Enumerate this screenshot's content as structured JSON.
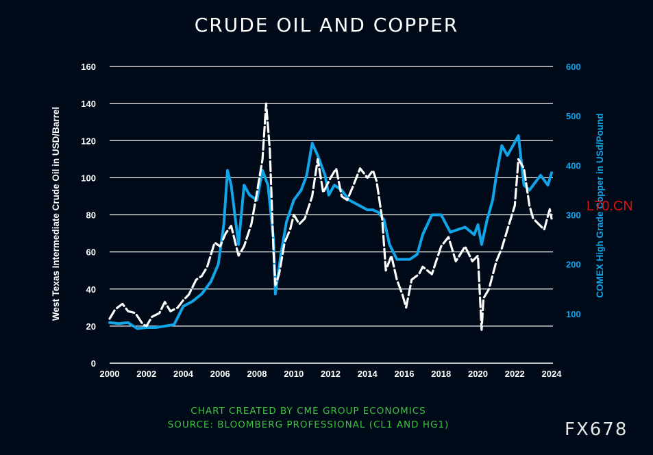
{
  "title": "CRUDE OIL AND COPPER",
  "footer": {
    "line1": "CHART CREATED BY CME GROUP ECONOMICS",
    "line2": "SOURCE: BLOOMBERG PROFESSIONAL (CL1 AND HG1)"
  },
  "watermark": "FX678",
  "stamp": "L70.CN",
  "colors": {
    "background": "#010a18",
    "oil": "#ffffff",
    "copper": "#10a4e8",
    "grid": "#ffffff",
    "footer": "#3fc240",
    "stamp": "#e01010"
  },
  "chart_data": {
    "type": "line",
    "title": "CRUDE OIL AND COPPER",
    "xlabel": "",
    "ylabel": "West Texas Intermediate Crude Oil in USD/Barrel",
    "y2label": "COMEX High Grade Copper in USd/Pound",
    "xlim": [
      2000,
      2024
    ],
    "ylim": [
      0,
      160
    ],
    "y2lim": [
      0,
      600
    ],
    "xticks": [
      "2000",
      "2002",
      "2004",
      "2006",
      "2008",
      "2010",
      "2012",
      "2014",
      "2016",
      "2018",
      "2020",
      "2022",
      "2024"
    ],
    "yticks": [
      "0",
      "20",
      "40",
      "60",
      "80",
      "100",
      "120",
      "140",
      "160"
    ],
    "y2ticks": [
      "100",
      "200",
      "300",
      "400",
      "500",
      "600"
    ],
    "grid": true,
    "series": [
      {
        "name": "",
        "axis": "left",
        "style": "dashed",
        "x": [
          2000.0,
          2000.3,
          2000.7,
          2001.0,
          2001.4,
          2001.8,
          2002.0,
          2002.3,
          2002.7,
          2003.0,
          2003.3,
          2003.7,
          2004.0,
          2004.3,
          2004.7,
          2005.0,
          2005.3,
          2005.7,
          2006.0,
          2006.3,
          2006.6,
          2007.0,
          2007.3,
          2007.7,
          2008.0,
          2008.3,
          2008.5,
          2008.7,
          2008.9,
          2009.0,
          2009.2,
          2009.5,
          2009.8,
          2010.0,
          2010.3,
          2010.6,
          2011.0,
          2011.3,
          2011.6,
          2011.9,
          2012.0,
          2012.3,
          2012.6,
          2012.9,
          2013.2,
          2013.6,
          2014.0,
          2014.3,
          2014.5,
          2014.8,
          2015.0,
          2015.3,
          2015.6,
          2015.9,
          2016.1,
          2016.4,
          2016.8,
          2017.0,
          2017.5,
          2018.0,
          2018.4,
          2018.8,
          2019.0,
          2019.3,
          2019.7,
          2020.0,
          2020.2,
          2020.3,
          2020.6,
          2021.0,
          2021.3,
          2021.6,
          2022.0,
          2022.2,
          2022.5,
          2022.8,
          2023.0,
          2023.3,
          2023.6,
          2023.9,
          2024.0
        ],
        "values": [
          24,
          29,
          32,
          28,
          27,
          21,
          20,
          25,
          27,
          33,
          28,
          30,
          34,
          37,
          45,
          47,
          52,
          65,
          63,
          70,
          74,
          58,
          63,
          75,
          92,
          110,
          140,
          115,
          60,
          42,
          48,
          65,
          72,
          80,
          75,
          78,
          90,
          110,
          92,
          98,
          100,
          105,
          90,
          88,
          95,
          105,
          100,
          104,
          98,
          78,
          50,
          58,
          45,
          37,
          30,
          45,
          48,
          52,
          48,
          63,
          68,
          55,
          58,
          63,
          55,
          58,
          18,
          35,
          40,
          55,
          62,
          72,
          85,
          110,
          105,
          85,
          78,
          75,
          72,
          83,
          78
        ]
      },
      {
        "name": "",
        "axis": "right",
        "style": "solid",
        "x": [
          2000.0,
          2000.5,
          2001.0,
          2001.5,
          2002.0,
          2002.5,
          2003.0,
          2003.5,
          2004.0,
          2004.5,
          2005.0,
          2005.5,
          2005.9,
          2006.2,
          2006.4,
          2006.6,
          2007.0,
          2007.3,
          2007.6,
          2008.0,
          2008.3,
          2008.6,
          2008.9,
          2009.0,
          2009.3,
          2009.6,
          2010.0,
          2010.4,
          2010.7,
          2011.0,
          2011.3,
          2011.7,
          2011.9,
          2012.2,
          2012.6,
          2013.0,
          2013.5,
          2014.0,
          2014.3,
          2014.6,
          2014.9,
          2015.2,
          2015.6,
          2015.9,
          2016.3,
          2016.7,
          2017.0,
          2017.5,
          2018.0,
          2018.5,
          2018.9,
          2019.3,
          2019.8,
          2020.0,
          2020.2,
          2020.5,
          2020.8,
          2021.0,
          2021.3,
          2021.6,
          2021.9,
          2022.2,
          2022.5,
          2022.8,
          2023.0,
          2023.4,
          2023.8,
          2024.0
        ],
        "values": [
          82,
          80,
          82,
          70,
          72,
          72,
          75,
          78,
          115,
          125,
          140,
          165,
          200,
          280,
          390,
          360,
          240,
          360,
          340,
          330,
          390,
          360,
          250,
          140,
          220,
          285,
          330,
          350,
          380,
          445,
          420,
          380,
          340,
          360,
          350,
          330,
          320,
          310,
          310,
          305,
          290,
          240,
          210,
          210,
          210,
          220,
          260,
          300,
          300,
          265,
          270,
          275,
          260,
          280,
          240,
          290,
          330,
          380,
          440,
          420,
          440,
          460,
          360,
          350,
          360,
          380,
          360,
          385
        ]
      }
    ]
  }
}
